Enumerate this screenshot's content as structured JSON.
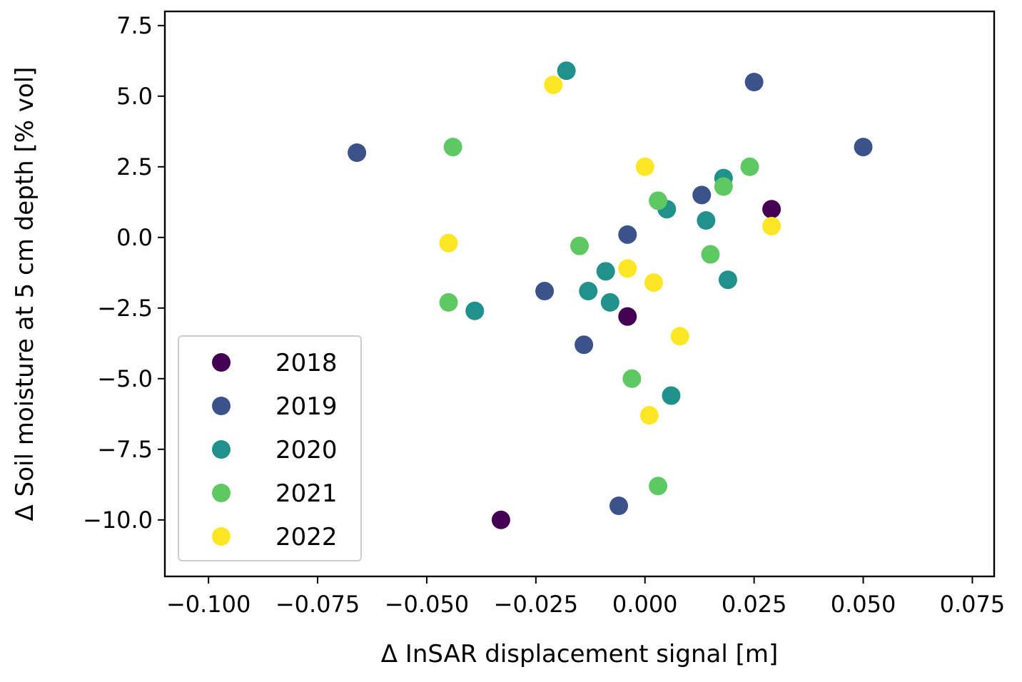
{
  "chart_data": {
    "type": "scatter",
    "title": "",
    "xlabel": "Δ InSAR displacement signal [m]",
    "ylabel": "Δ Soil moisture at 5 cm depth [% vol]",
    "xlim": [
      -0.11,
      0.08
    ],
    "ylim": [
      -12.0,
      8.0
    ],
    "x_ticks": [
      -0.1,
      -0.075,
      -0.05,
      -0.025,
      0.0,
      0.025,
      0.05,
      0.075
    ],
    "x_tick_labels": [
      "−0.100",
      "−0.075",
      "−0.050",
      "−0.025",
      "0.000",
      "0.025",
      "0.050",
      "0.075"
    ],
    "y_ticks": [
      7.5,
      5.0,
      2.5,
      0.0,
      -2.5,
      -5.0,
      -7.5,
      -10.0
    ],
    "y_tick_labels": [
      "7.5",
      "5.0",
      "2.5",
      "0.0",
      "−2.5",
      "−5.0",
      "−7.5",
      "−10.0"
    ],
    "grid": false,
    "legend_position": "lower-left",
    "series": [
      {
        "name": "2018",
        "color": "#440154",
        "points": [
          {
            "x": -0.033,
            "y": -10.0
          },
          {
            "x": -0.004,
            "y": -2.8
          },
          {
            "x": 0.029,
            "y": 1.0
          }
        ]
      },
      {
        "name": "2019",
        "color": "#3b528b",
        "points": [
          {
            "x": -0.066,
            "y": 3.0
          },
          {
            "x": -0.023,
            "y": -1.9
          },
          {
            "x": -0.014,
            "y": -3.8
          },
          {
            "x": -0.006,
            "y": -9.5
          },
          {
            "x": -0.004,
            "y": 0.1
          },
          {
            "x": 0.013,
            "y": 1.5
          },
          {
            "x": 0.025,
            "y": 5.5
          },
          {
            "x": 0.05,
            "y": 3.2
          }
        ]
      },
      {
        "name": "2020",
        "color": "#21918c",
        "points": [
          {
            "x": -0.018,
            "y": 5.9
          },
          {
            "x": -0.039,
            "y": -2.6
          },
          {
            "x": -0.013,
            "y": -1.9
          },
          {
            "x": -0.009,
            "y": -1.2
          },
          {
            "x": -0.008,
            "y": -2.3
          },
          {
            "x": 0.005,
            "y": 1.0
          },
          {
            "x": 0.006,
            "y": -5.6
          },
          {
            "x": 0.014,
            "y": 0.6
          },
          {
            "x": 0.018,
            "y": 2.1
          },
          {
            "x": 0.019,
            "y": -1.5
          }
        ]
      },
      {
        "name": "2021",
        "color": "#5ec962",
        "points": [
          {
            "x": -0.044,
            "y": 3.2
          },
          {
            "x": -0.045,
            "y": -2.3
          },
          {
            "x": -0.015,
            "y": -0.3
          },
          {
            "x": -0.003,
            "y": -5.0
          },
          {
            "x": 0.003,
            "y": 1.3
          },
          {
            "x": 0.003,
            "y": -8.8
          },
          {
            "x": 0.015,
            "y": -0.6
          },
          {
            "x": 0.018,
            "y": 1.8
          },
          {
            "x": 0.024,
            "y": 2.5
          }
        ]
      },
      {
        "name": "2022",
        "color": "#fde725",
        "points": [
          {
            "x": -0.021,
            "y": 5.4
          },
          {
            "x": -0.045,
            "y": -0.2
          },
          {
            "x": -0.004,
            "y": -1.1
          },
          {
            "x": 0.0,
            "y": 2.5
          },
          {
            "x": 0.002,
            "y": -1.6
          },
          {
            "x": 0.001,
            "y": -6.3
          },
          {
            "x": 0.008,
            "y": -3.5
          },
          {
            "x": 0.029,
            "y": 0.4
          }
        ]
      }
    ]
  }
}
